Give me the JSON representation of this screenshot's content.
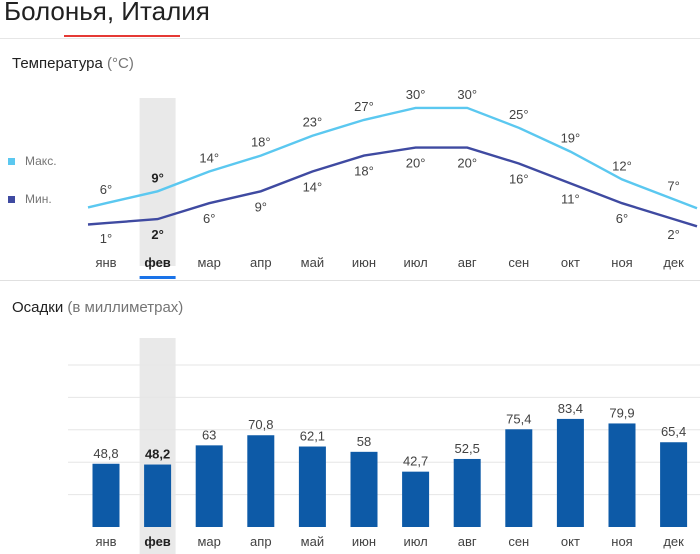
{
  "page": {
    "title": "Болонья, Италия"
  },
  "temperature": {
    "title": "Температура",
    "unit": "(°C)",
    "legend": {
      "max_label": "Макс.",
      "min_label": "Мин."
    }
  },
  "precipitation": {
    "title": "Осадки",
    "unit": "(в миллиметрах)"
  },
  "colors": {
    "max_line": "#5bc8f0",
    "min_line": "#3f4aa1",
    "bar": "#0d5aa7",
    "selected_band": "#e9e9e9",
    "selected_marker": "#1a73e8",
    "title_accent": "#e53935"
  },
  "selected_month_index": 1,
  "chart_data": [
    {
      "type": "line",
      "title": "Температура",
      "ylabel": "°C",
      "categories": [
        "янв",
        "фев",
        "мар",
        "апр",
        "май",
        "июн",
        "июл",
        "авг",
        "сен",
        "окт",
        "ноя",
        "дек"
      ],
      "series": [
        {
          "name": "Макс.",
          "values": [
            6,
            9,
            14,
            18,
            23,
            27,
            30,
            30,
            25,
            19,
            12,
            7
          ]
        },
        {
          "name": "Мин.",
          "values": [
            1,
            2,
            6,
            9,
            14,
            18,
            20,
            20,
            16,
            11,
            6,
            2
          ]
        }
      ],
      "value_suffix": "°",
      "legend_position": "left"
    },
    {
      "type": "bar",
      "title": "Осадки",
      "ylabel": "мм",
      "categories": [
        "янв",
        "фев",
        "мар",
        "апр",
        "май",
        "июн",
        "июл",
        "авг",
        "сен",
        "окт",
        "ноя",
        "дек"
      ],
      "values": [
        48.8,
        48.2,
        63,
        70.8,
        62.1,
        58,
        42.7,
        52.5,
        75.4,
        83.4,
        79.9,
        65.4
      ],
      "value_labels": [
        "48,8",
        "48,2",
        "63",
        "70,8",
        "62,1",
        "58",
        "42,7",
        "52,5",
        "75,4",
        "83,4",
        "79,9",
        "65,4"
      ],
      "grid": true
    }
  ]
}
